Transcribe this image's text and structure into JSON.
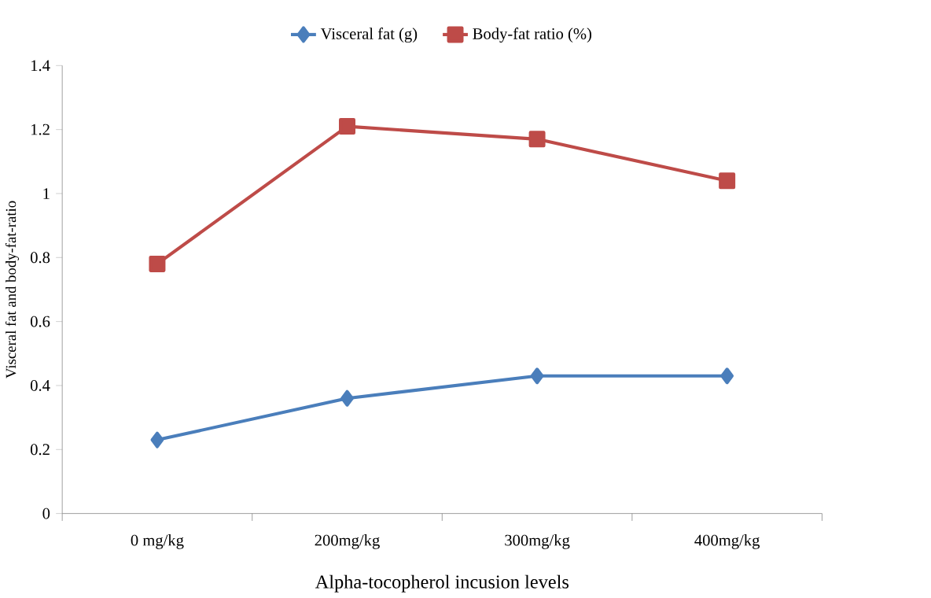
{
  "chart_data": {
    "type": "line",
    "categories": [
      "0 mg/kg",
      "200mg/kg",
      "300mg/kg",
      "400mg/kg"
    ],
    "series": [
      {
        "name": "Visceral fat (g)",
        "color": "#4a7ebb",
        "marker": "diamond",
        "values": [
          0.23,
          0.36,
          0.43,
          0.43
        ]
      },
      {
        "name": "Body-fat ratio (%)",
        "color": "#be4b48",
        "marker": "square",
        "values": [
          0.78,
          1.21,
          1.17,
          1.04
        ]
      }
    ],
    "xlabel": "Alpha-tocopherol incusion levels",
    "ylabel": "Visceral fat and body-fat-ratio",
    "ylim": [
      0,
      1.4
    ],
    "yticks": [
      0,
      0.2,
      0.4,
      0.6,
      0.8,
      1,
      1.2,
      1.4
    ],
    "grid": false,
    "legend": "top",
    "line_style": "solid"
  }
}
